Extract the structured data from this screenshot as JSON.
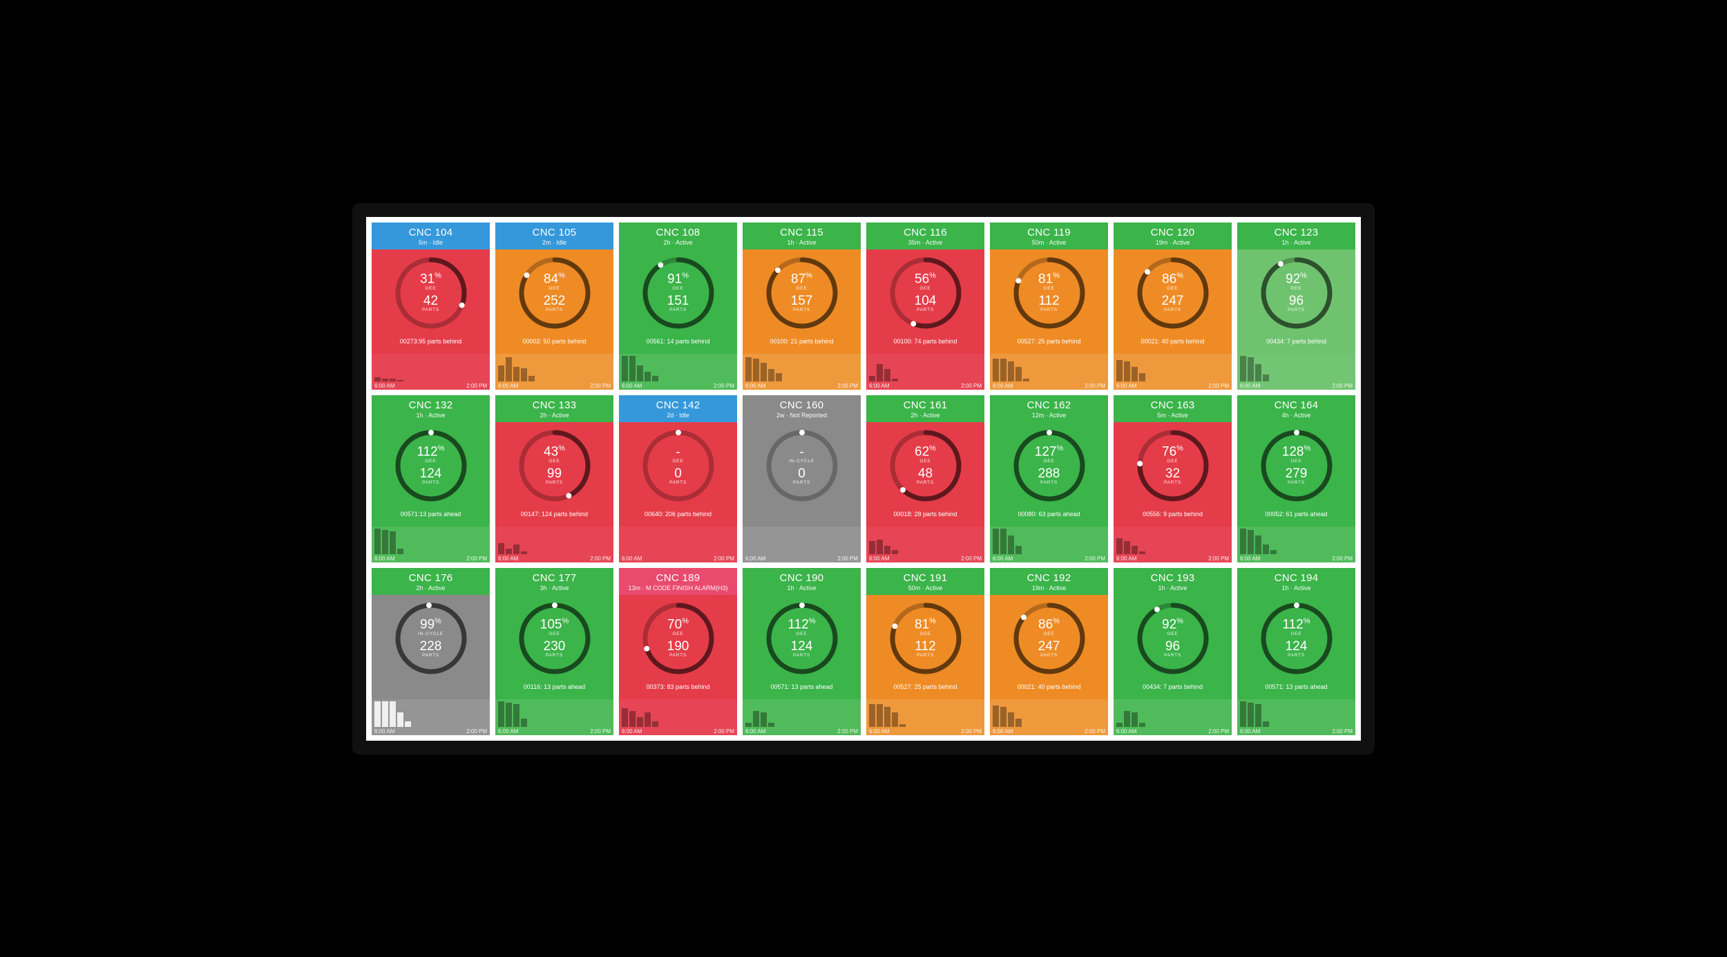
{
  "timeAxis": {
    "start": "6:00 AM",
    "end": "2:00 PM"
  },
  "palette": {
    "header_blue": "#3598db",
    "header_green": "#3bb44a",
    "header_pink": "#e84b6e",
    "header_gray": "#8a8a8a",
    "body_red": "#e53c49",
    "body_orange": "#ef8b25",
    "body_green": "#3bb44a",
    "body_gray": "#8a8a8a",
    "body_ltgreen": "#6fc36f",
    "spark_red_over": "rgba(230,80,100,.45)",
    "spark_orange_over": "rgba(240,170,90,.45)",
    "spark_green_over": "rgba(120,200,120,.35)",
    "spark_gray_over": "rgba(170,170,170,.35)",
    "bar_dark": "rgba(0,0,0,.35)",
    "ring_track": "rgba(0,0,0,.25)",
    "ring_prog": "rgba(0,0,0,.45)",
    "ring_dot": "#ffffff"
  },
  "labels": {
    "oee": "OEE",
    "incycle": "IN-CYCLE",
    "parts": "PARTS"
  },
  "machines": [
    {
      "id": "CNC 104",
      "sub": "5m · Idle",
      "header": "header_blue",
      "body": "body_red",
      "oee": "31",
      "parts": "42",
      "status": "00273:95 parts behind",
      "spark": "spark_red_over",
      "bars": [
        0.15,
        0.1,
        0.08,
        0.05,
        0,
        0,
        0,
        0
      ],
      "pct": 31
    },
    {
      "id": "CNC 105",
      "sub": "2m · Idle",
      "header": "header_blue",
      "body": "body_orange",
      "oee": "84",
      "parts": "252",
      "status": "00002: 50 parts behind",
      "spark": "spark_orange_over",
      "bars": [
        0.6,
        0.9,
        0.55,
        0.5,
        0.2,
        0,
        0,
        0
      ],
      "pct": 84
    },
    {
      "id": "CNC 108",
      "sub": "2h · Active",
      "header": "header_green",
      "body": "body_green",
      "oee": "91",
      "parts": "151",
      "status": "00561: 14 parts behind",
      "spark": "spark_green_over",
      "bars": [
        0.95,
        0.95,
        0.6,
        0.35,
        0.2,
        0,
        0,
        0
      ],
      "pct": 91
    },
    {
      "id": "CNC 115",
      "sub": "1h · Active",
      "header": "header_green",
      "body": "body_orange",
      "oee": "87",
      "parts": "157",
      "status": "00100: 21 parts behind",
      "spark": "spark_orange_over",
      "bars": [
        0.9,
        0.85,
        0.7,
        0.45,
        0.3,
        0,
        0,
        0
      ],
      "pct": 87
    },
    {
      "id": "CNC 116",
      "sub": "35m · Active",
      "header": "header_green",
      "body": "body_red",
      "oee": "56",
      "parts": "104",
      "status": "00100: 74 parts behind",
      "spark": "spark_red_over",
      "bars": [
        0.2,
        0.65,
        0.45,
        0.1,
        0,
        0,
        0,
        0
      ],
      "pct": 56
    },
    {
      "id": "CNC 119",
      "sub": "50m · Active",
      "header": "header_green",
      "body": "body_orange",
      "oee": "81",
      "parts": "112",
      "status": "00527: 25 parts behind",
      "spark": "spark_orange_over",
      "bars": [
        0.85,
        0.85,
        0.75,
        0.55,
        0.1,
        0,
        0,
        0
      ],
      "pct": 81
    },
    {
      "id": "CNC 120",
      "sub": "19m · Active",
      "header": "header_green",
      "body": "body_orange",
      "oee": "86",
      "parts": "247",
      "status": "00021: 40 parts behind",
      "spark": "spark_orange_over",
      "bars": [
        0.8,
        0.75,
        0.55,
        0.3,
        0,
        0,
        0,
        0
      ],
      "pct": 86
    },
    {
      "id": "CNC 123",
      "sub": "1h · Active",
      "header": "header_green",
      "body": "body_ltgreen",
      "oee": "92",
      "parts": "96",
      "status": "00434: 7 parts behind",
      "spark": "spark_green_over",
      "bars": [
        0.95,
        0.9,
        0.65,
        0.25,
        0,
        0,
        0,
        0
      ],
      "pct": 92
    },
    {
      "id": "CNC 132",
      "sub": "1h · Active",
      "header": "header_green",
      "body": "body_green",
      "oee": "112",
      "parts": "124",
      "status": "00571:13 parts ahead",
      "spark": "spark_green_over",
      "bars": [
        0.95,
        0.9,
        0.85,
        0.2,
        0,
        0,
        0,
        0
      ],
      "pct": 100
    },
    {
      "id": "CNC 133",
      "sub": "2h · Active",
      "header": "header_green",
      "body": "body_red",
      "oee": "43",
      "parts": "99",
      "status": "00147: 124 parts behind",
      "spark": "spark_red_over",
      "bars": [
        0.4,
        0.2,
        0.35,
        0.1,
        0,
        0,
        0,
        0
      ],
      "pct": 43
    },
    {
      "id": "CNC 142",
      "sub": "2d · Idle",
      "header": "header_blue",
      "body": "body_red",
      "oee": "-",
      "parts": "0",
      "status": "00640: 206 parts behind",
      "spark": "spark_red_over",
      "bars": [
        0,
        0,
        0,
        0,
        0,
        0,
        0,
        0
      ],
      "pct": 0
    },
    {
      "id": "CNC 160",
      "sub": "2w · Not Reported",
      "header": "header_gray",
      "body": "body_gray",
      "oee": "-",
      "oeeLabel": "incycle",
      "parts": "0",
      "status": "",
      "spark": "spark_gray_over",
      "bars": [
        0,
        0,
        0,
        0,
        0,
        0,
        0,
        0
      ],
      "pct": 0
    },
    {
      "id": "CNC 161",
      "sub": "2h · Active",
      "header": "header_green",
      "body": "body_red",
      "oee": "62",
      "parts": "48",
      "status": "00018: 28 parts behind",
      "spark": "spark_red_over",
      "bars": [
        0.5,
        0.55,
        0.3,
        0.15,
        0,
        0,
        0,
        0
      ],
      "pct": 62
    },
    {
      "id": "CNC 162",
      "sub": "12m · Active",
      "header": "header_green",
      "body": "body_green",
      "oee": "127",
      "parts": "288",
      "status": "00080: 63 parts ahead",
      "spark": "spark_green_over",
      "bars": [
        0.95,
        0.95,
        0.7,
        0.3,
        0,
        0,
        0,
        0
      ],
      "pct": 100
    },
    {
      "id": "CNC 163",
      "sub": "5m · Active",
      "header": "header_green",
      "body": "body_red",
      "oee": "76",
      "parts": "32",
      "status": "00556: 9 parts behind",
      "spark": "spark_red_over",
      "bars": [
        0.6,
        0.5,
        0.3,
        0.1,
        0,
        0,
        0,
        0
      ],
      "pct": 76
    },
    {
      "id": "CNC 164",
      "sub": "4h · Active",
      "header": "header_green",
      "body": "body_green",
      "oee": "128",
      "parts": "279",
      "status": "00052: 61 parts ahead",
      "spark": "spark_green_over",
      "bars": [
        0.95,
        0.9,
        0.7,
        0.35,
        0.15,
        0,
        0,
        0
      ],
      "pct": 100
    },
    {
      "id": "CNC 176",
      "sub": "2h · Active",
      "header": "header_green",
      "body": "body_gray",
      "oee": "99",
      "oeeLabel": "incycle",
      "parts": "228",
      "status": "",
      "spark": "spark_gray_over",
      "bars": [
        0.95,
        0.95,
        0.95,
        0.55,
        0.2,
        0,
        0,
        0
      ],
      "pct": 99,
      "barsWhite": true
    },
    {
      "id": "CNC 177",
      "sub": "3h · Active",
      "header": "header_green",
      "body": "body_green",
      "oee": "105",
      "parts": "230",
      "status": "00116: 13 parts ahead",
      "spark": "spark_green_over",
      "bars": [
        0.95,
        0.9,
        0.85,
        0.3,
        0,
        0,
        0,
        0
      ],
      "pct": 100
    },
    {
      "id": "CNC 189",
      "sub": "13m · M CODE FINISH ALARM(H3)",
      "header": "header_pink",
      "body": "body_red",
      "oee": "70",
      "parts": "190",
      "status": "00373: 83 parts behind",
      "spark": "spark_red_over",
      "bars": [
        0.7,
        0.6,
        0.35,
        0.55,
        0.2,
        0,
        0,
        0
      ],
      "pct": 70
    },
    {
      "id": "CNC 190",
      "sub": "1h · Active",
      "header": "header_green",
      "body": "body_green",
      "oee": "112",
      "parts": "124",
      "status": "00571: 13 parts ahead",
      "spark": "spark_green_over",
      "bars": [
        0.15,
        0.6,
        0.55,
        0.15,
        0,
        0,
        0,
        0
      ],
      "pct": 100
    },
    {
      "id": "CNC 191",
      "sub": "50m · Active",
      "header": "header_green",
      "body": "body_orange",
      "oee": "81",
      "parts": "112",
      "status": "00527: 25 parts behind",
      "spark": "spark_orange_over",
      "bars": [
        0.85,
        0.85,
        0.75,
        0.55,
        0.1,
        0,
        0,
        0
      ],
      "pct": 81
    },
    {
      "id": "CNC 192",
      "sub": "19m · Active",
      "header": "header_green",
      "body": "body_orange",
      "oee": "86",
      "parts": "247",
      "status": "00021: 40 parts behind",
      "spark": "spark_orange_over",
      "bars": [
        0.8,
        0.75,
        0.55,
        0.3,
        0,
        0,
        0,
        0
      ],
      "pct": 86
    },
    {
      "id": "CNC 193",
      "sub": "1h · Active",
      "header": "header_green",
      "body": "body_green",
      "oee": "92",
      "parts": "96",
      "status": "00434: 7 parts behind",
      "spark": "spark_green_over",
      "bars": [
        0.15,
        0.6,
        0.55,
        0.15,
        0,
        0,
        0,
        0
      ],
      "pct": 92
    },
    {
      "id": "CNC 194",
      "sub": "1h · Active",
      "header": "header_green",
      "body": "body_green",
      "oee": "112",
      "parts": "124",
      "status": "00571: 13 parts ahead",
      "spark": "spark_green_over",
      "bars": [
        0.95,
        0.9,
        0.85,
        0.2,
        0,
        0,
        0,
        0
      ],
      "pct": 100
    }
  ]
}
